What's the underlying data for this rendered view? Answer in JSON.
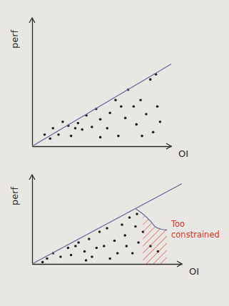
{
  "chart_data": [
    {
      "type": "scatter",
      "xlabel": "OI",
      "ylabel": "perf",
      "xlim": [
        0,
        100
      ],
      "ylim": [
        0,
        100
      ],
      "tick_labels": false,
      "series": [
        {
          "type": "scatter",
          "color": "#1e1e1e",
          "marker": "circle",
          "x": [
            9,
            13,
            19,
            22,
            26,
            28,
            33,
            36,
            31,
            39,
            43,
            46,
            49,
            54,
            56,
            60,
            64,
            67,
            69,
            73,
            75,
            78,
            82,
            85,
            87,
            89,
            90,
            92,
            79,
            62,
            49,
            15
          ],
          "values": [
            9,
            6,
            9,
            19,
            16,
            8,
            18,
            13,
            14,
            24,
            15,
            29,
            21,
            14,
            26,
            36,
            31,
            22,
            44,
            31,
            17,
            36,
            25,
            52,
            11,
            56,
            31,
            19,
            8,
            8,
            7,
            14
          ]
        },
        {
          "type": "line",
          "color": "#6b7099",
          "x": [
            0,
            100
          ],
          "values": [
            0,
            64
          ]
        }
      ]
    },
    {
      "type": "scatter",
      "xlabel": "OI",
      "ylabel": "perf",
      "xlim": [
        0,
        100
      ],
      "ylim": [
        0,
        100
      ],
      "tick_labels": false,
      "annotation": {
        "text": "Too constrained",
        "color": "#d9342b"
      },
      "series": [
        {
          "type": "scatter",
          "color": "#1e1e1e",
          "marker": "circle",
          "x": [
            7,
            10,
            14,
            19,
            24,
            26,
            29,
            31,
            35,
            36,
            38,
            40,
            43,
            45,
            48,
            50,
            52,
            55,
            57,
            60,
            62,
            63,
            65,
            67,
            69,
            70,
            71,
            74,
            79,
            84
          ],
          "values": [
            2,
            6,
            12,
            8,
            18,
            10,
            20,
            24,
            14,
            4,
            28,
            8,
            18,
            36,
            20,
            40,
            6,
            26,
            12,
            44,
            32,
            20,
            52,
            12,
            42,
            56,
            24,
            36,
            20,
            14
          ]
        },
        {
          "type": "line",
          "color": "#6b7099",
          "x": [
            0,
            100
          ],
          "values": [
            0,
            90
          ]
        },
        {
          "type": "line",
          "color": "#6b7099",
          "x": [
            69,
            74,
            79,
            82,
            86,
            90
          ],
          "values": [
            62,
            56,
            48,
            42,
            39,
            38
          ]
        },
        {
          "type": "area",
          "color": "#d9342b",
          "line_style": "hatched",
          "x": [
            74,
            79,
            82,
            86,
            90
          ],
          "values": [
            56,
            48,
            42,
            39,
            38
          ]
        }
      ]
    }
  ]
}
